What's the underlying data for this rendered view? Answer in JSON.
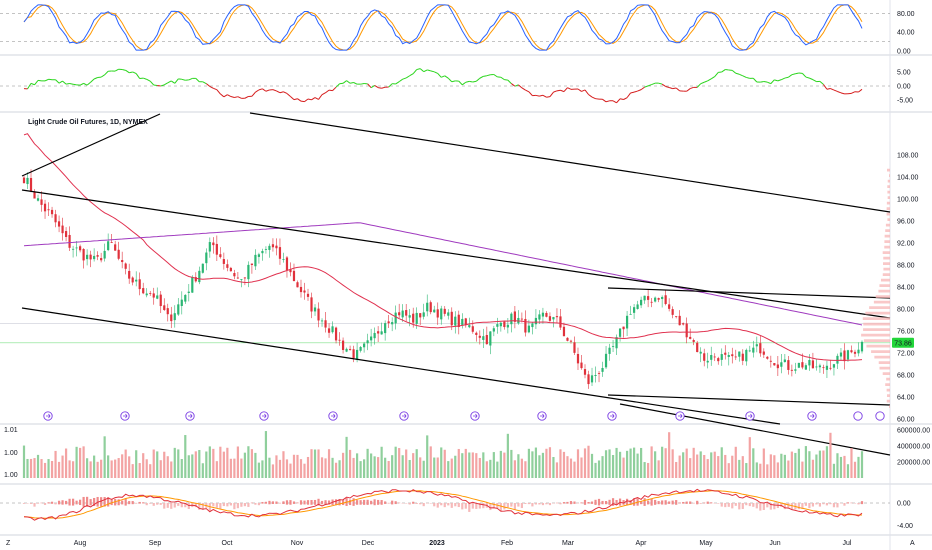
{
  "instrument": {
    "title": "Light Crude Oil Futures, 1D, NYMEX"
  },
  "colors": {
    "up": "#2bb673",
    "down": "#e0313b",
    "ma_fast": "#e0314f",
    "ma_slow": "#a03bbf",
    "trendline": "#000000",
    "stoch_k": "#2962ff",
    "stoch_d": "#ff9800",
    "momentum_up": "#2ad51c",
    "momentum_down": "#d51c1c",
    "vol_up": "#8fcf9c",
    "vol_down": "#f3a3a3",
    "macd_line": "#e0313b",
    "signal_line": "#ff9800",
    "hist_up": "#f08a8a",
    "hist_down": "#f6b9b9",
    "price_tag": "#22d63a"
  },
  "price_label": "73.86",
  "y_ticks_price": [
    "108.00",
    "104.00",
    "100.00",
    "96.00",
    "92.00",
    "88.00",
    "84.00",
    "80.00",
    "76.00",
    "72.00",
    "68.00",
    "64.00",
    "60.00"
  ],
  "y_ticks_stoch": [
    "80.00",
    "40.00",
    "0.00"
  ],
  "y_ticks_mom": [
    "5.00",
    "0.00",
    "-5.00"
  ],
  "y_ticks_vol": [
    "600000.00",
    "400000.00",
    "200000.00"
  ],
  "y_ticks_macd": [
    "0.00",
    "-4.00"
  ],
  "ratio_labels": [
    "1.01",
    "1.00",
    "1.00"
  ],
  "x_labels": [
    "Aug",
    "Sep",
    "Oct",
    "Nov",
    "Dec",
    "2023",
    "Feb",
    "Mar",
    "Apr",
    "May",
    "Jun",
    "Jul"
  ],
  "corner_labels": {
    "left": "Z",
    "right": "A"
  },
  "chart_data": {
    "type": "candlestick",
    "title": "Light Crude Oil Futures, 1D, NYMEX",
    "x_range": [
      "Jul 2022",
      "Jul 2023"
    ],
    "y_range": [
      60,
      112
    ],
    "last_price": 73.86,
    "series": [
      {
        "name": "Close (approx. weekly)",
        "values": [
          104.0,
          99.5,
          96.5,
          92.0,
          90.0,
          88.5,
          92.0,
          86.5,
          84.0,
          82.5,
          78.0,
          82.0,
          86.5,
          92.0,
          88.0,
          85.0,
          89.0,
          91.5,
          88.5,
          84.0,
          80.0,
          77.0,
          73.5,
          71.5,
          74.0,
          78.0,
          79.5,
          78.0,
          80.5,
          79.0,
          77.5,
          76.5,
          74.5,
          77.5,
          78.5,
          76.0,
          79.0,
          77.5,
          72.5,
          66.5,
          69.5,
          74.0,
          80.0,
          81.5,
          82.5,
          78.5,
          75.5,
          71.0,
          71.5,
          70.5,
          72.0,
          73.0,
          70.5,
          69.5,
          70.0,
          69.0,
          70.5,
          71.5,
          73.8
        ]
      }
    ]
  }
}
